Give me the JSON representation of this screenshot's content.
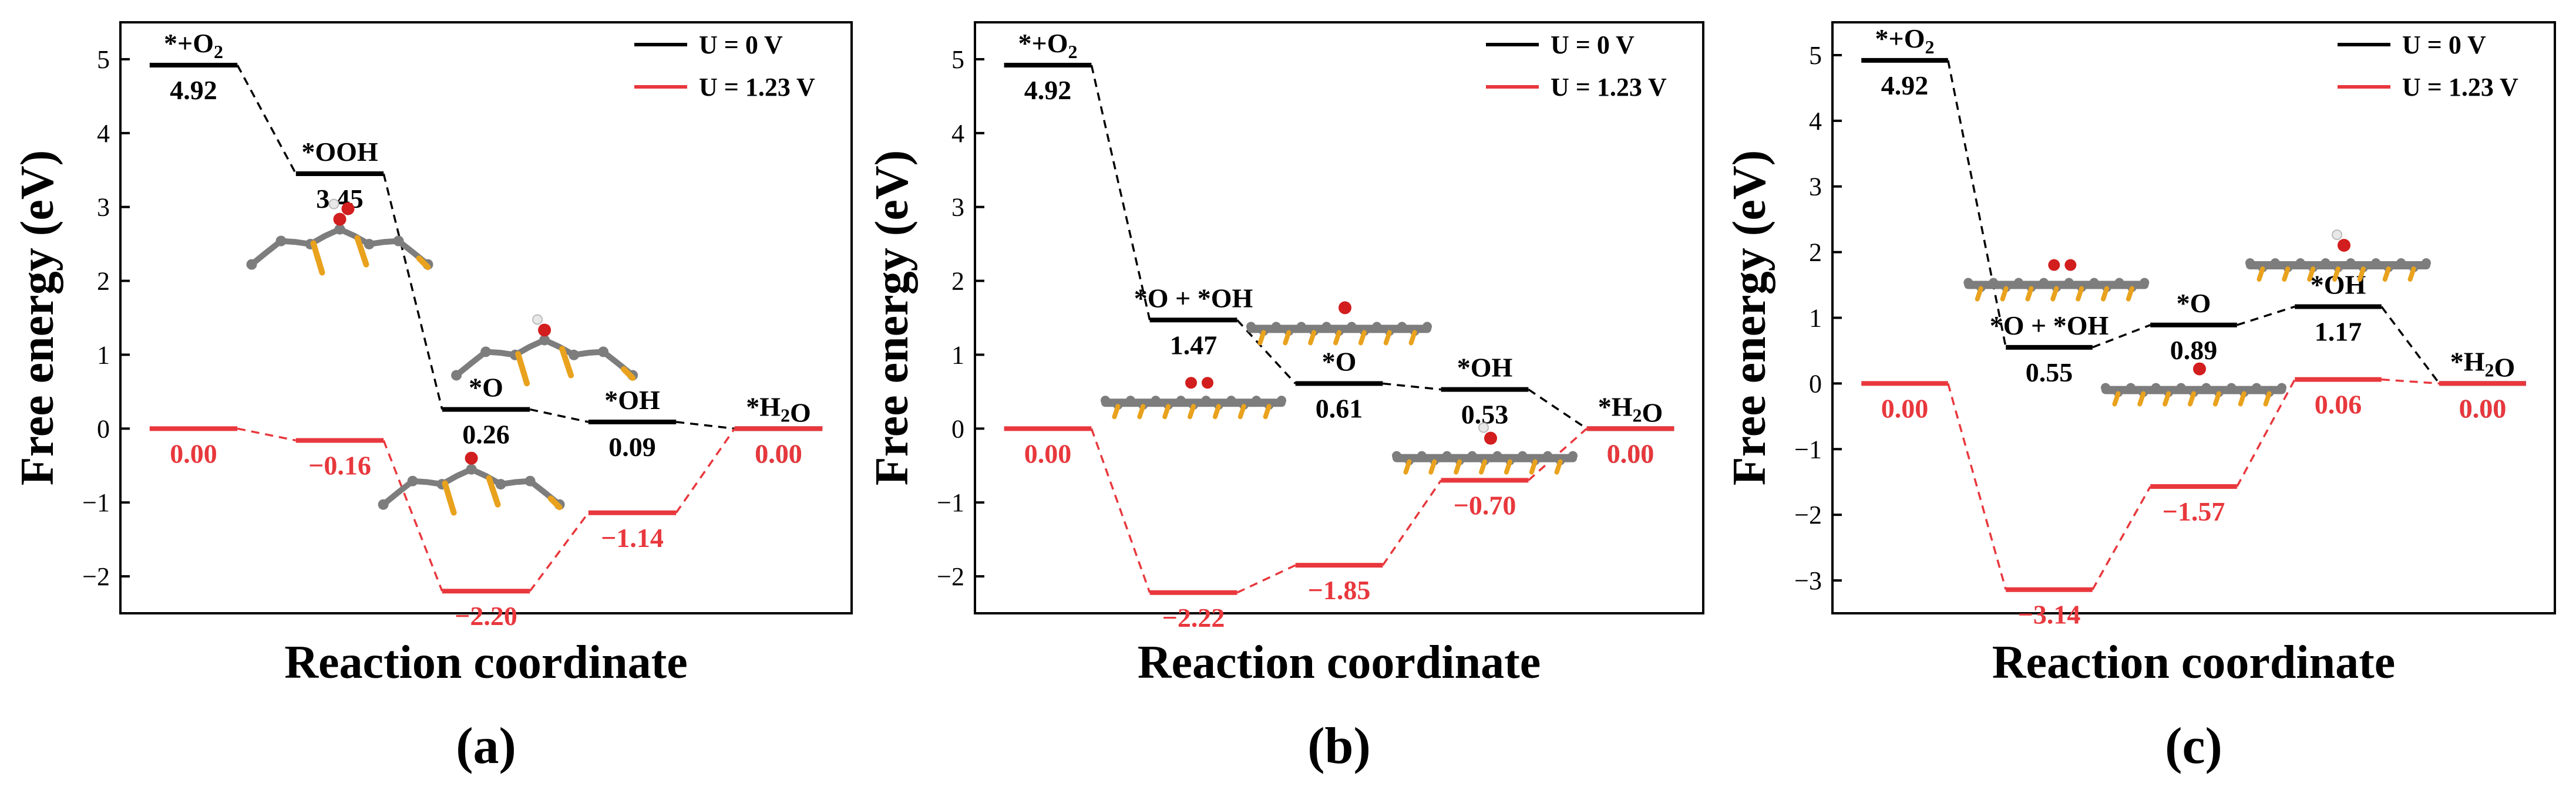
{
  "figure": {
    "colors": {
      "u0": "#000000",
      "u123": "#e8383d",
      "axis": "#000000",
      "carbon": "#7d7d7d",
      "sulfur": "#e9a21d",
      "oxygen": "#d21e1e",
      "hydrogen": "#e8e8e8"
    }
  },
  "chart_data": [
    {
      "type": "energy-profile",
      "panel_label": "(a)",
      "xlabel": "Reaction coordinate",
      "ylabel": "Free energy (eV)",
      "ylim": [
        -2.5,
        5.5
      ],
      "yticks": [
        -2,
        -1,
        0,
        1,
        2,
        3,
        4,
        5
      ],
      "tick_labels": [
        "−2",
        "−1",
        "0",
        "1",
        "2",
        "3",
        "4",
        "5"
      ],
      "legend": [
        "U = 0 V",
        "U = 1.23 V"
      ],
      "steps": 5,
      "series": [
        {
          "name": "U = 0 V",
          "color_key": "u0",
          "values": [
            4.92,
            3.45,
            0.26,
            0.09,
            0.0
          ],
          "value_labels": [
            "4.92",
            "3.45",
            "0.26",
            "0.09",
            "0.00"
          ],
          "state_labels": [
            "*+O2",
            "*OOH",
            "*O",
            "*OH",
            "*H2O"
          ]
        },
        {
          "name": "U = 1.23 V",
          "color_key": "u123",
          "values": [
            0.0,
            -0.16,
            -2.2,
            -1.14,
            0.0
          ],
          "value_labels": [
            "0.00",
            "−0.16",
            "−2.20",
            "−1.14",
            "0.00"
          ]
        }
      ],
      "structures": [
        {
          "x_step": 1.0,
          "y": 2.5,
          "kind": "bent-S",
          "adsorbate": "OOH"
        },
        {
          "x_step": 2.4,
          "y": 1.0,
          "kind": "bent-S",
          "adsorbate": "OH"
        },
        {
          "x_step": 1.9,
          "y": -0.75,
          "kind": "bent-S",
          "adsorbate": "O"
        }
      ]
    },
    {
      "type": "energy-profile",
      "panel_label": "(b)",
      "xlabel": "Reaction coordinate",
      "ylabel": "Free energy (eV)",
      "ylim": [
        -2.5,
        5.5
      ],
      "yticks": [
        -2,
        -1,
        0,
        1,
        2,
        3,
        4,
        5
      ],
      "tick_labels": [
        "−2",
        "−1",
        "0",
        "1",
        "2",
        "3",
        "4",
        "5"
      ],
      "legend": [
        "U = 0 V",
        "U = 1.23 V"
      ],
      "steps": 5,
      "series": [
        {
          "name": "U = 0 V",
          "color_key": "u0",
          "values": [
            4.92,
            1.47,
            0.61,
            0.53,
            0.0
          ],
          "value_labels": [
            "4.92",
            "1.47",
            "0.61",
            "0.53",
            "0.00"
          ],
          "state_labels": [
            "*+O2",
            "*O + *OH",
            "*O",
            "*OH",
            "*H2O"
          ]
        },
        {
          "name": "U = 1.23 V",
          "color_key": "u123",
          "values": [
            0.0,
            -2.22,
            -1.85,
            -0.7,
            0.0
          ],
          "value_labels": [
            "0.00",
            "−2.22",
            "−1.85",
            "−0.70",
            "0.00"
          ]
        }
      ],
      "structures": [
        {
          "x_step": 1.0,
          "y": 0.35,
          "kind": "flat",
          "adsorbate": "OO"
        },
        {
          "x_step": 2.0,
          "y": 1.35,
          "kind": "flat",
          "adsorbate": "O"
        },
        {
          "x_step": 3.0,
          "y": -0.4,
          "kind": "flat",
          "adsorbate": "OH"
        }
      ]
    },
    {
      "type": "energy-profile",
      "panel_label": "(c)",
      "xlabel": "Reaction coordinate",
      "ylabel": "Free energy (eV)",
      "ylim": [
        -3.5,
        5.5
      ],
      "yticks": [
        -3,
        -2,
        -1,
        0,
        1,
        2,
        3,
        4,
        5
      ],
      "tick_labels": [
        "−3",
        "−2",
        "−1",
        "0",
        "1",
        "2",
        "3",
        "4",
        "5"
      ],
      "legend": [
        "U = 0 V",
        "U = 1.23 V"
      ],
      "steps": 5,
      "series": [
        {
          "name": "U = 0 V",
          "color_key": "u0",
          "values": [
            4.92,
            0.55,
            0.89,
            1.17,
            0.0
          ],
          "value_labels": [
            "4.92",
            "0.55",
            "0.89",
            "1.17",
            "0.00"
          ],
          "state_labels": [
            "*+O2",
            "*O + *OH",
            "*O",
            "*OH",
            "*H2O"
          ]
        },
        {
          "name": "U = 1.23 V",
          "color_key": "u123",
          "values": [
            0.0,
            -3.14,
            -1.57,
            0.06,
            0.0
          ],
          "value_labels": [
            "0.00",
            "−3.14",
            "−1.57",
            "0.06",
            "0.00"
          ]
        }
      ],
      "structures": [
        {
          "x_step": 1.05,
          "y": 1.5,
          "kind": "flat",
          "adsorbate": "OO"
        },
        {
          "x_step": 2.0,
          "y": -0.1,
          "kind": "flat",
          "adsorbate": "O"
        },
        {
          "x_step": 3.0,
          "y": 1.8,
          "kind": "flat",
          "adsorbate": "OH"
        }
      ]
    }
  ]
}
